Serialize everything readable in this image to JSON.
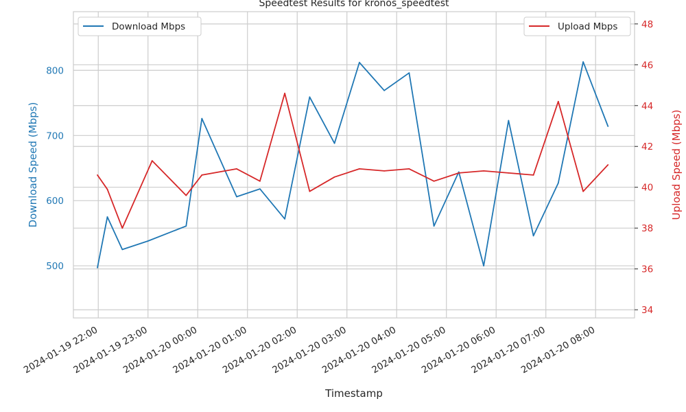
{
  "chart_data": {
    "type": "line",
    "title": "Speedtest Results for kronos_speedtest",
    "xlabel": "Timestamp",
    "ylabel_left": "Download Speed (Mbps)",
    "ylabel_right": "Upload Speed (Mbps)",
    "x_ticks": [
      "2024-01-19 22:00",
      "2024-01-19 23:00",
      "2024-01-20 00:00",
      "2024-01-20 01:00",
      "2024-01-20 02:00",
      "2024-01-20 03:00",
      "2024-01-20 04:00",
      "2024-01-20 05:00",
      "2024-01-20 06:00",
      "2024-01-20 07:00",
      "2024-01-20 08:00"
    ],
    "x_range": [
      "2024-01-19 21:30",
      "2024-01-20 08:47"
    ],
    "ylim_left": [
      420,
      890
    ],
    "y_ticks_left": [
      500,
      600,
      700,
      800
    ],
    "ylim_right": [
      33.6,
      48.6
    ],
    "y_ticks_right": [
      34,
      36,
      38,
      40,
      42,
      44,
      46,
      48
    ],
    "grid": true,
    "series": [
      {
        "name": "Download Mbps",
        "axis": "left",
        "color": "#1f77b4",
        "legend": "top-left",
        "x": [
          "2024-01-19 21:59",
          "2024-01-19 22:11",
          "2024-01-19 22:29",
          "2024-01-19 23:00",
          "2024-01-19 23:46",
          "2024-01-20 00:05",
          "2024-01-20 00:47",
          "2024-01-20 01:15",
          "2024-01-20 01:45",
          "2024-01-20 02:15",
          "2024-01-20 02:45",
          "2024-01-20 03:15",
          "2024-01-20 03:45",
          "2024-01-20 04:15",
          "2024-01-20 04:45",
          "2024-01-20 05:15",
          "2024-01-20 05:45",
          "2024-01-20 06:15",
          "2024-01-20 06:45",
          "2024-01-20 07:15",
          "2024-01-20 07:45",
          "2024-01-20 08:15"
        ],
        "values": [
          497,
          575,
          525,
          538,
          561,
          726,
          606,
          618,
          572,
          759,
          688,
          812,
          769,
          796,
          561,
          644,
          500,
          723,
          546,
          627,
          813,
          714
        ]
      },
      {
        "name": "Upload Mbps",
        "axis": "right",
        "color": "#d62728",
        "legend": "top-right",
        "x": [
          "2024-01-19 21:59",
          "2024-01-19 22:11",
          "2024-01-19 22:29",
          "2024-01-19 23:05",
          "2024-01-19 23:46",
          "2024-01-20 00:05",
          "2024-01-20 00:47",
          "2024-01-20 01:15",
          "2024-01-20 01:45",
          "2024-01-20 02:15",
          "2024-01-20 02:45",
          "2024-01-20 03:15",
          "2024-01-20 03:45",
          "2024-01-20 04:15",
          "2024-01-20 04:45",
          "2024-01-20 05:15",
          "2024-01-20 05:45",
          "2024-01-20 06:15",
          "2024-01-20 06:45",
          "2024-01-20 07:15",
          "2024-01-20 07:45",
          "2024-01-20 08:15"
        ],
        "values": [
          40.6,
          39.9,
          38.0,
          41.3,
          39.6,
          40.6,
          40.9,
          40.3,
          44.6,
          39.8,
          40.5,
          40.9,
          40.8,
          40.9,
          40.3,
          40.7,
          40.8,
          40.7,
          40.6,
          44.2,
          39.8,
          41.1
        ]
      }
    ]
  }
}
